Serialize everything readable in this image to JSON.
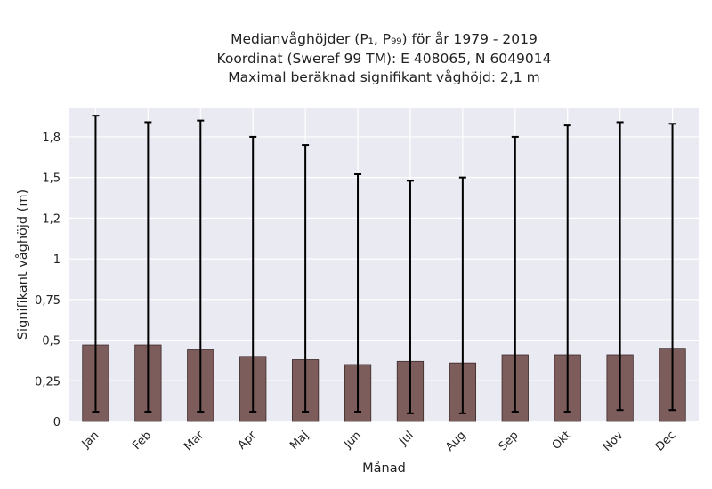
{
  "chart_data": {
    "type": "bar",
    "title_lines": [
      "Medianvåghöjder (P₁, P₉₉) för år 1979 - 2019",
      "Koordinat (Sweref 99 TM): E 408065, N 6049014",
      "Maximal beräknad signifikant våghöjd: 2,1 m"
    ],
    "xlabel": "Månad",
    "ylabel": "Signifikant våghöjd (m)",
    "categories": [
      "Jan",
      "Feb",
      "Mar",
      "Apr",
      "Maj",
      "Jun",
      "Jul",
      "Aug",
      "Sep",
      "Okt",
      "Nov",
      "Dec"
    ],
    "values": [
      0.47,
      0.47,
      0.44,
      0.4,
      0.38,
      0.35,
      0.37,
      0.36,
      0.41,
      0.41,
      0.41,
      0.45
    ],
    "err_low": [
      0.06,
      0.06,
      0.06,
      0.06,
      0.06,
      0.06,
      0.05,
      0.05,
      0.06,
      0.06,
      0.07,
      0.07
    ],
    "err_high": [
      1.88,
      1.84,
      1.85,
      1.75,
      1.7,
      1.52,
      1.48,
      1.5,
      1.75,
      1.82,
      1.84,
      1.83
    ],
    "ylim": [
      0,
      1.93
    ],
    "yticks": [
      0,
      0.25,
      0.5,
      0.75,
      1,
      1.25,
      1.5,
      1.75
    ],
    "ytick_labels": [
      "0",
      "0,25",
      "0,5",
      "0,75",
      "1",
      "1,2",
      "1,5",
      "1,8"
    ],
    "grid": true,
    "colors": {
      "background": "#eaeaf2",
      "grid": "#ffffff",
      "bar_fill": "#7d5c5c",
      "bar_edge": "#3a2a2a",
      "errorbar": "#000000"
    }
  }
}
